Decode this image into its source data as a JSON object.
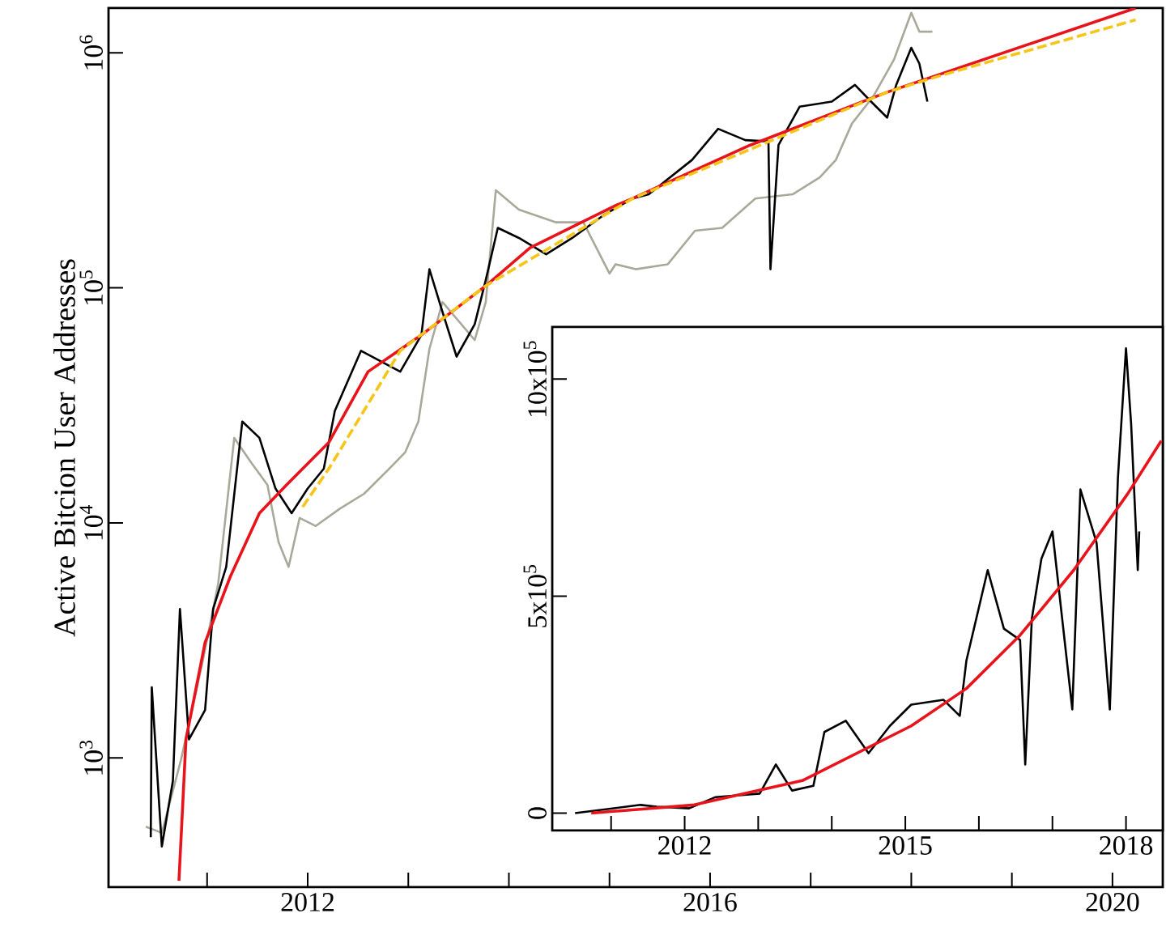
{
  "chart_data": [
    {
      "type": "line",
      "ylabel": "Active Bitcion User Addresses",
      "log": "y",
      "xlim": [
        2010.02,
        2020.5
      ],
      "ylim": [
        282,
        1550000
      ],
      "xticks": [
        {
          "value": 2011,
          "label": null
        },
        2012,
        {
          "value": 2013,
          "label": null
        },
        {
          "value": 2014,
          "label": null
        },
        {
          "value": 2015,
          "label": null
        },
        2016,
        {
          "value": 2017,
          "label": null
        },
        {
          "value": 2018,
          "label": null
        },
        {
          "value": 2019,
          "label": null
        },
        2020
      ],
      "yticks": [
        {
          "value": 1000,
          "label": "10$^{3}$"
        },
        {
          "value": 10000,
          "label": "10$^{4}$"
        },
        {
          "value": 100000,
          "label": "10$^{5}$"
        },
        {
          "value": 1000000,
          "label": "10$^{6}$"
        }
      ],
      "series": [
        {
          "color": "#aaa89a",
          "x": [
            2010.39,
            2010.55,
            2010.74,
            2010.95,
            2011.11,
            2011.27,
            2011.44,
            2011.6,
            2011.71,
            2011.81,
            2011.92,
            2012.08,
            2012.32,
            2012.56,
            2012.81,
            2012.97,
            2013.1,
            2013.21,
            2013.34,
            2013.66,
            2013.77,
            2013.87,
            2014.1,
            2014.47,
            2014.74,
            2015.0,
            2015.06,
            2015.26,
            2015.58,
            2015.85,
            2016.12,
            2016.45,
            2016.82,
            2017.09,
            2017.25,
            2017.41,
            2017.62,
            2017.83,
            2018.0,
            2018.08,
            2018.21
          ],
          "values": [
            510,
            480,
            980,
            2500,
            5500,
            23000,
            18000,
            14500,
            8300,
            6500,
            10500,
            9700,
            11500,
            13300,
            17000,
            20000,
            27000,
            55000,
            87000,
            60000,
            87000,
            260000,
            215000,
            190000,
            190000,
            115000,
            126000,
            120000,
            126000,
            175000,
            180000,
            240000,
            250000,
            295000,
            350000,
            500000,
            650000,
            940000,
            1480000,
            1230000,
            1230000
          ]
        },
        {
          "color": "#000000",
          "x": [
            2010.44,
            2010.45,
            2010.55,
            2010.66,
            2010.73,
            2010.82,
            2010.98,
            2011.06,
            2011.19,
            2011.35,
            2011.52,
            2011.68,
            2011.84,
            2012.0,
            2012.16,
            2012.27,
            2012.53,
            2012.92,
            2013.13,
            2013.21,
            2013.34,
            2013.48,
            2013.66,
            2013.77,
            2013.89,
            2014.1,
            2014.37,
            2014.63,
            2014.95,
            2015.23,
            2015.39,
            2015.82,
            2016.08,
            2016.35,
            2016.58,
            2016.6,
            2016.68,
            2016.89,
            2017.21,
            2017.44,
            2017.6,
            2017.76,
            2017.85,
            2018.0,
            2018.08,
            2018.16
          ],
          "values": [
            460,
            2000,
            420,
            800,
            4300,
            1200,
            1600,
            4300,
            6500,
            27000,
            23000,
            14000,
            11000,
            14000,
            17000,
            30000,
            54000,
            44000,
            63000,
            120000,
            79000,
            51000,
            70000,
            108000,
            180000,
            163000,
            139000,
            163000,
            205000,
            240000,
            250000,
            350000,
            475000,
            425000,
            420000,
            120000,
            405000,
            590000,
            620000,
            730000,
            620000,
            530000,
            730000,
            1050000,
            900000,
            620000
          ]
        },
        {
          "color": "#e8141c",
          "x": [
            2010.72,
            2010.79,
            2010.98,
            2011.23,
            2011.52,
            2011.79,
            2012.21,
            2012.6,
            2013.13,
            2013.77,
            2014.21,
            2015.06,
            2015.23,
            2016.4,
            2017.76,
            2020.23
          ],
          "values": [
            300,
            1200,
            3100,
            5900,
            11000,
            14500,
            22000,
            44000,
            63000,
            102000,
            148000,
            224000,
            240000,
            405000,
            680000,
            1550000
          ]
        },
        {
          "color": "#f5c518",
          "line_style": "dashed",
          "x": [
            2011.95,
            2012.21,
            2012.92,
            2013.77,
            2015.23,
            2017.76,
            2018.29,
            2020.23
          ],
          "values": [
            11700,
            17000,
            54000,
            102000,
            240000,
            680000,
            800000,
            1380000
          ]
        }
      ]
    },
    {
      "type": "line",
      "xlim": [
        2010.2,
        2018.5
      ],
      "ylim": [
        -40000,
        1120000
      ],
      "xticks": [
        {
          "value": 2011,
          "label": null
        },
        2012,
        {
          "value": 2013,
          "label": null
        },
        {
          "value": 2014,
          "label": null
        },
        2015,
        {
          "value": 2016,
          "label": null
        },
        {
          "value": 2017,
          "label": null
        },
        2018
      ],
      "yticks": [
        0,
        {
          "value": 500000,
          "label": "5x10$^{5}$"
        },
        {
          "value": 1000000,
          "label": "10x10$^{5}$"
        }
      ],
      "series": [
        {
          "color": "#000000",
          "x": [
            2010.51,
            2011.4,
            2011.62,
            2012.06,
            2012.42,
            2013.02,
            2013.24,
            2013.46,
            2013.75,
            2013.9,
            2014.19,
            2014.5,
            2014.79,
            2015.08,
            2015.52,
            2015.74,
            2015.83,
            2016.12,
            2016.34,
            2016.56,
            2016.63,
            2016.72,
            2016.85,
            2017.0,
            2017.27,
            2017.38,
            2017.6,
            2017.78,
            2017.89,
            2018.0,
            2018.07,
            2018.16,
            2018.18
          ],
          "values": [
            0,
            19000,
            15000,
            11000,
            37000,
            45000,
            112000,
            52000,
            63000,
            187000,
            213000,
            138000,
            201000,
            250000,
            261000,
            224000,
            351000,
            560000,
            425000,
            399000,
            112000,
            448000,
            586000,
            649000,
            239000,
            746000,
            623000,
            239000,
            772000,
            1071000,
            896000,
            560000,
            649000
          ]
        },
        {
          "color": "#e8141c",
          "x": [
            2010.73,
            2012.13,
            2013.6,
            2015.08,
            2015.83,
            2016.56,
            2017.29,
            2018.02,
            2018.48
          ],
          "values": [
            0,
            19000,
            75000,
            201000,
            287000,
            410000,
            560000,
            735000,
            858000
          ]
        }
      ]
    }
  ]
}
